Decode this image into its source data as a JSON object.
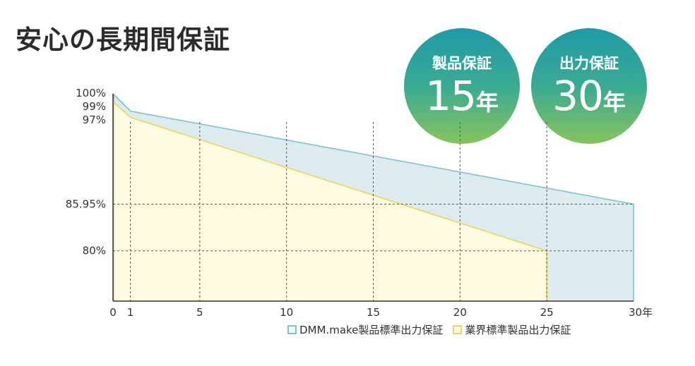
{
  "page": {
    "title": "安心の長期間保証",
    "badges": [
      {
        "label": "製品保証",
        "value": "15",
        "unit": "年"
      },
      {
        "label": "出力保証",
        "value": "30",
        "unit": "年"
      }
    ]
  },
  "chart_data": {
    "type": "area",
    "x_ticks": [
      0,
      1,
      5,
      10,
      15,
      20,
      25,
      30
    ],
    "x_tick_labels": [
      "0",
      "1",
      "5",
      "10",
      "15",
      "20",
      "25",
      "30年"
    ],
    "y_ticks": [
      100,
      99,
      97,
      85.95,
      80
    ],
    "y_tick_labels": [
      "100%",
      "99%",
      "97%",
      "85.95%",
      "80%"
    ],
    "xlim": [
      0,
      30
    ],
    "ylim": [
      73.6,
      100
    ],
    "grid": "dashed",
    "legend_position": "bottom-right",
    "series": [
      {
        "name": "DMM.make製品標準出力保証",
        "color": "#7dc3cf",
        "fill": "#dcecee",
        "points": [
          [
            0,
            100
          ],
          [
            1,
            97.8
          ],
          [
            30,
            85.95
          ]
        ]
      },
      {
        "name": "業界標準製品出力保証",
        "color": "#f0d35a",
        "fill": "#fffbe0",
        "points": [
          [
            0,
            99
          ],
          [
            1,
            97
          ],
          [
            25,
            80
          ]
        ]
      }
    ]
  }
}
